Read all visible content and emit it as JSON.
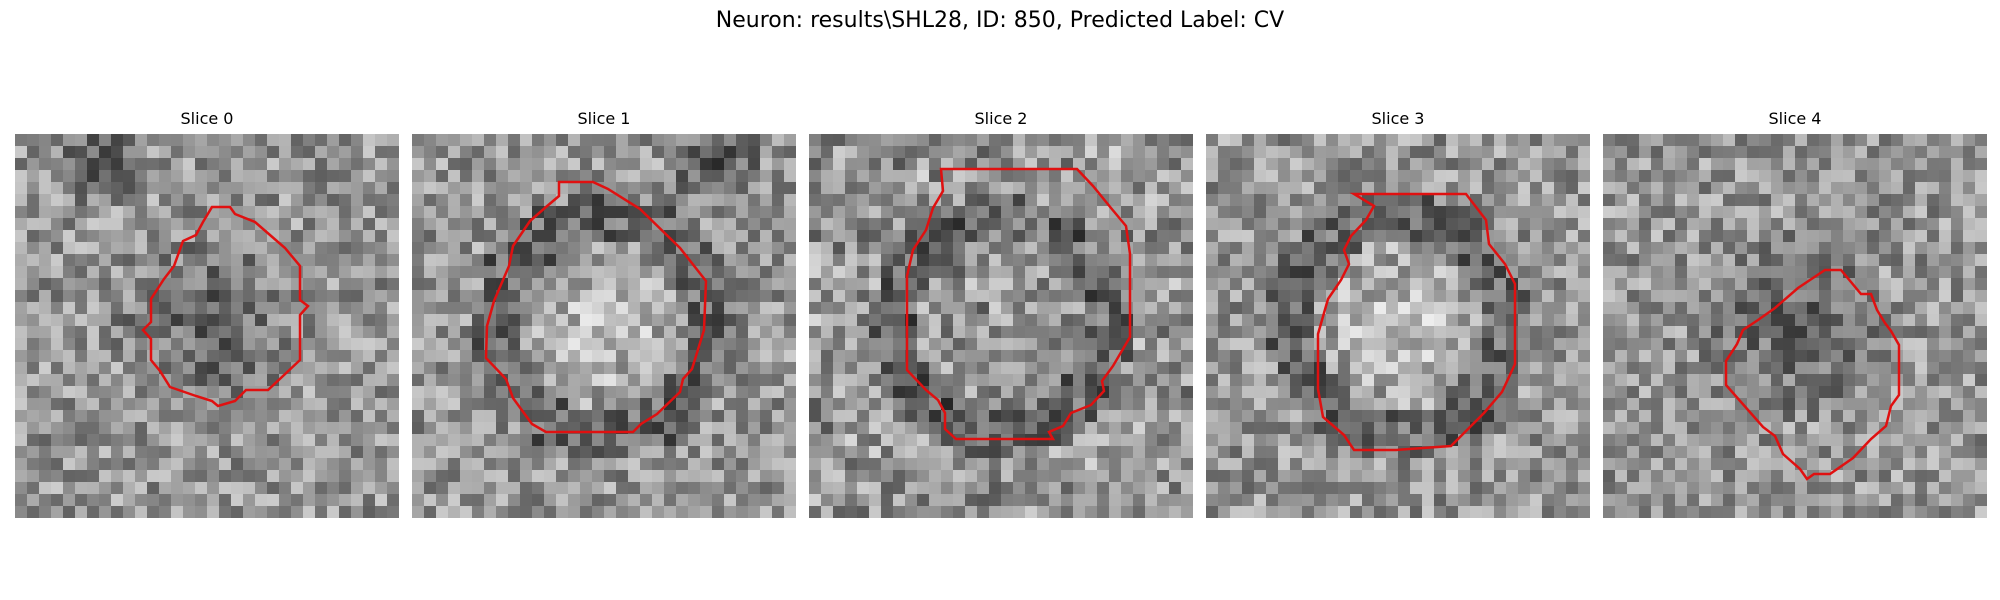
{
  "figure": {
    "title": "Neuron: results\\SHL28, ID: 850, Predicted Label: CV"
  },
  "panels": [
    {
      "title": "Slice 0",
      "texture": {
        "dark_center": true,
        "dark_blob_top_left": true,
        "ring": false,
        "seed": 11
      }
    },
    {
      "title": "Slice 1",
      "texture": {
        "bright_center": true,
        "dark_blob_top_right": true,
        "ring": true,
        "seed": 23
      }
    },
    {
      "title": "Slice 2",
      "texture": {
        "bright_center": false,
        "ring": true,
        "noisy": true,
        "seed": 37
      }
    },
    {
      "title": "Slice 3",
      "texture": {
        "bright_center": true,
        "ring": true,
        "seed": 41
      }
    },
    {
      "title": "Slice 4",
      "texture": {
        "dark_center": true,
        "ring": false,
        "seed": 53
      }
    }
  ],
  "colors": {
    "contour": "#e01010",
    "background": "#ffffff"
  }
}
